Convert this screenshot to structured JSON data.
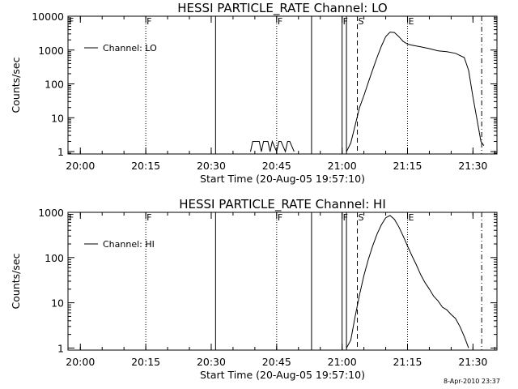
{
  "timestamp": "8-Apr-2010 23:37",
  "chart_data": [
    {
      "type": "line",
      "title": "HESSI PARTICLE_RATE Channel: LO",
      "xlabel": "Start Time (20-Aug-05 19:57:10)",
      "ylabel": "Counts/sec",
      "yscale": "log",
      "ylim": [
        0.85,
        10000
      ],
      "xlim": [
        "19:57:10",
        "21:35:30"
      ],
      "x_ticks": [
        "20:00",
        "20:15",
        "20:30",
        "20:45",
        "21:00",
        "21:15",
        "21:30"
      ],
      "y_ticks": [
        "1",
        "10",
        "100",
        "1000",
        "10000"
      ],
      "legend": {
        "label": "Channel: LO",
        "position": "top-left"
      },
      "grid": false,
      "series": [
        {
          "name": "Channel: LO",
          "x": [
            "21:01:00",
            "21:02:00",
            "21:03:00",
            "21:04:00",
            "21:05:00",
            "21:06:00",
            "21:07:00",
            "21:08:00",
            "21:09:00",
            "21:10:00",
            "21:11:00",
            "21:12:00",
            "21:13:00",
            "21:14:00",
            "21:15:00",
            "21:16:00",
            "21:18:00",
            "21:20:00",
            "21:22:00",
            "21:24:00",
            "21:26:00",
            "21:28:00",
            "21:29:00",
            "21:30:00",
            "21:31:00",
            "21:31:50",
            "21:32:30"
          ],
          "values": [
            1,
            1.8,
            6,
            20,
            45,
            110,
            260,
            600,
            1300,
            2500,
            3400,
            3300,
            2500,
            1800,
            1500,
            1400,
            1250,
            1100,
            950,
            900,
            800,
            600,
            250,
            40,
            8,
            2,
            1.5
          ]
        },
        {
          "name": "",
          "x": [
            "20:39:00",
            "20:39:30",
            "20:40:00",
            "20:41:00",
            "20:41:30",
            "20:42:00",
            "20:43:00",
            "20:43:30",
            "20:44:00",
            "20:45:00",
            "20:45:30",
            "20:46:00",
            "20:47:00",
            "20:47:30",
            "20:48:00",
            "20:49:00"
          ],
          "values": [
            1,
            2,
            2,
            2,
            1,
            2,
            2,
            1,
            2,
            1,
            2,
            2,
            1,
            2,
            2,
            1
          ]
        }
      ],
      "vertical_markers": [
        {
          "time": "19:57:10",
          "style": "solid",
          "label": "F"
        },
        {
          "time": "20:15:00",
          "style": "dotted",
          "label": "F"
        },
        {
          "time": "20:31:00",
          "style": "solid",
          "label": ""
        },
        {
          "time": "20:45:00",
          "style": "dotted",
          "label": "F"
        },
        {
          "time": "20:53:00",
          "style": "solid",
          "label": ""
        },
        {
          "time": "21:00:00",
          "style": "solid",
          "label": "F"
        },
        {
          "time": "21:01:00",
          "style": "solid",
          "label": ""
        },
        {
          "time": "21:03:30",
          "style": "dashed",
          "label": "S"
        },
        {
          "time": "21:15:00",
          "style": "dotted",
          "label": "E"
        },
        {
          "time": "21:32:00",
          "style": "dashdot",
          "label": ""
        }
      ]
    },
    {
      "type": "line",
      "title": "HESSI PARTICLE_RATE Channel: HI",
      "xlabel": "Start Time (20-Aug-05 19:57:10)",
      "ylabel": "Counts/sec",
      "yscale": "log",
      "ylim": [
        0.9,
        1000
      ],
      "xlim": [
        "19:57:10",
        "21:35:30"
      ],
      "x_ticks": [
        "20:00",
        "20:15",
        "20:30",
        "20:45",
        "21:00",
        "21:15",
        "21:30"
      ],
      "y_ticks": [
        "1",
        "10",
        "100",
        "1000"
      ],
      "legend": {
        "label": "Channel: HI",
        "position": "top-left"
      },
      "grid": false,
      "series": [
        {
          "name": "Channel: HI",
          "x": [
            "21:01:00",
            "21:02:00",
            "21:03:00",
            "21:04:00",
            "21:05:00",
            "21:06:00",
            "21:07:00",
            "21:08:00",
            "21:09:00",
            "21:10:00",
            "21:11:00",
            "21:12:00",
            "21:13:00",
            "21:14:00",
            "21:15:00",
            "21:16:00",
            "21:17:00",
            "21:18:00",
            "21:19:00",
            "21:20:00",
            "21:21:00",
            "21:22:00",
            "21:23:00",
            "21:24:00",
            "21:25:00",
            "21:26:00",
            "21:27:00",
            "21:28:00",
            "21:29:00"
          ],
          "values": [
            1,
            1.5,
            5,
            15,
            40,
            90,
            180,
            330,
            530,
            760,
            850,
            700,
            480,
            300,
            180,
            110,
            70,
            42,
            28,
            20,
            14,
            11,
            8,
            7,
            5.5,
            4.5,
            3,
            1.8,
            1
          ]
        }
      ],
      "vertical_markers": [
        {
          "time": "19:57:10",
          "style": "solid",
          "label": "F"
        },
        {
          "time": "20:15:00",
          "style": "dotted",
          "label": "F"
        },
        {
          "time": "20:31:00",
          "style": "solid",
          "label": ""
        },
        {
          "time": "20:45:00",
          "style": "dotted",
          "label": "F"
        },
        {
          "time": "20:53:00",
          "style": "solid",
          "label": ""
        },
        {
          "time": "21:00:00",
          "style": "solid",
          "label": "F"
        },
        {
          "time": "21:01:00",
          "style": "solid",
          "label": ""
        },
        {
          "time": "21:03:30",
          "style": "dashed",
          "label": "S"
        },
        {
          "time": "21:15:00",
          "style": "dotted",
          "label": "E"
        },
        {
          "time": "21:32:00",
          "style": "dashdot",
          "label": ""
        }
      ]
    }
  ]
}
